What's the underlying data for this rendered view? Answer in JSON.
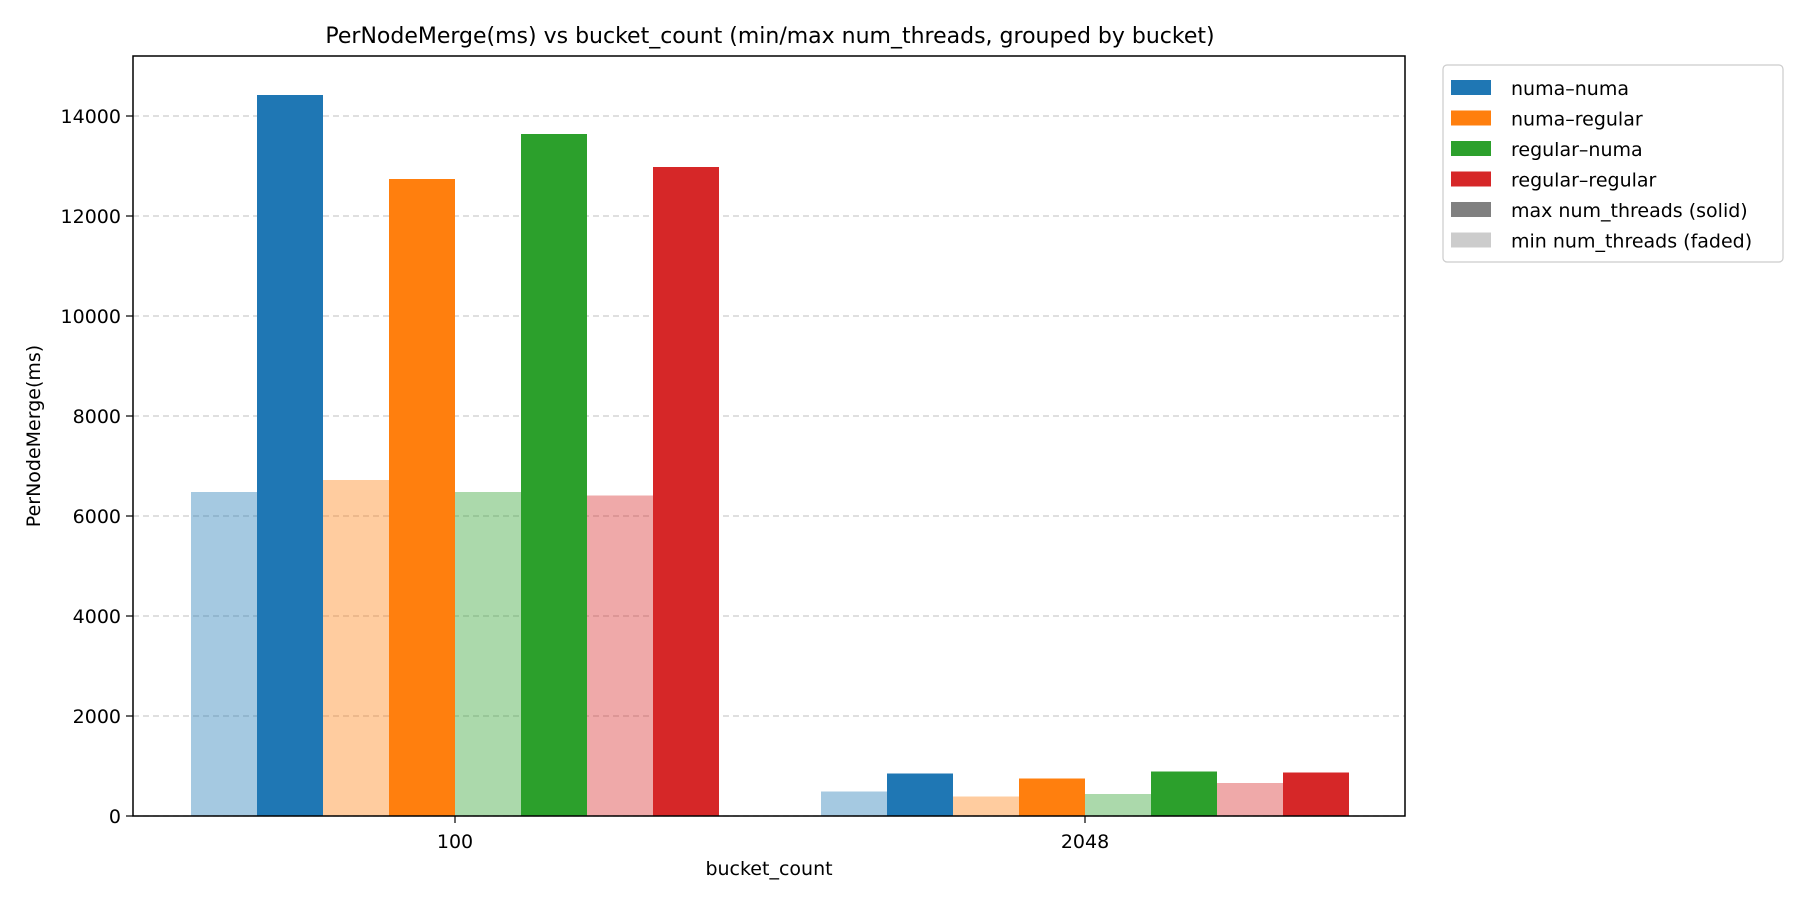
{
  "chart_data": {
    "type": "bar",
    "title": "PerNodeMerge(ms) vs bucket_count (min/max num_threads, grouped by bucket)",
    "xlabel": "bucket_count",
    "ylabel": "PerNodeMerge(ms)",
    "categories": [
      "100",
      "2048"
    ],
    "ylim": [
      0,
      15200
    ],
    "yticks": [
      0,
      2000,
      4000,
      6000,
      8000,
      10000,
      12000,
      14000
    ],
    "grid": "y-dashed",
    "legend_position": "outside-right-top",
    "series": [
      {
        "name": "numa–numa",
        "color": "#1f77b4",
        "min_values": [
          6480,
          490
        ],
        "max_values": [
          14420,
          850
        ]
      },
      {
        "name": "numa–regular",
        "color": "#ff7f0e",
        "min_values": [
          6720,
          390
        ],
        "max_values": [
          12740,
          750
        ]
      },
      {
        "name": "regular–numa",
        "color": "#2ca02c",
        "min_values": [
          6480,
          440
        ],
        "max_values": [
          13640,
          890
        ]
      },
      {
        "name": "regular–regular",
        "color": "#d62728",
        "min_values": [
          6410,
          660
        ],
        "max_values": [
          12980,
          870
        ]
      }
    ],
    "legend": [
      {
        "label": "numa–numa",
        "color": "#1f77b4"
      },
      {
        "label": "numa–regular",
        "color": "#ff7f0e"
      },
      {
        "label": "regular–numa",
        "color": "#2ca02c"
      },
      {
        "label": "regular–regular",
        "color": "#d62728"
      },
      {
        "label": "max num_threads (solid)",
        "color": "#808080"
      },
      {
        "label": "min num_threads (faded)",
        "color": "#cccccc"
      }
    ]
  }
}
